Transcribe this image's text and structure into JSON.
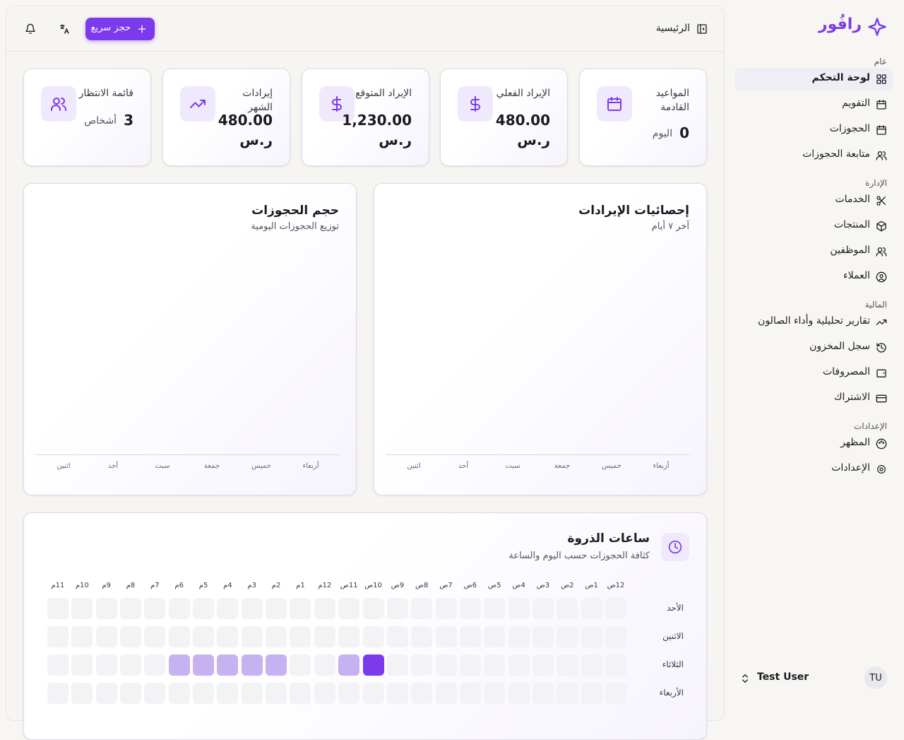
{
  "sidebar": {
    "logo": "رافُور",
    "sections": [
      {
        "title": "عام",
        "items": [
          "لوحة التحكم",
          "التقويم",
          "الحجوزات",
          "متابعة الحجوزات"
        ]
      },
      {
        "title": "الإدارة",
        "items": [
          "الخدمات",
          "المنتجات",
          "الموظفين",
          "العملاء"
        ]
      },
      {
        "title": "المالية",
        "items": [
          "تقارير تحليلية وأداء الصالون",
          "سجل المخزون",
          "المصروفات",
          "الاشتراك"
        ]
      },
      {
        "title": "الإعدادات",
        "items": [
          "المظهر",
          "الإعدادات"
        ]
      }
    ],
    "user": {
      "name": "Test User",
      "initials": "TU"
    }
  },
  "header": {
    "breadcrumb": "الرئيسية",
    "quick_booking": "حجز سريع"
  },
  "stats": [
    {
      "label": "المواعيد القادمة",
      "value": "0",
      "unit": "اليوم"
    },
    {
      "label": "الإيراد الفعلي",
      "value": "480.00",
      "currency": "ر.س"
    },
    {
      "label": "الإيراد المتوقع",
      "value": "1,230.00",
      "currency": "ر.س"
    },
    {
      "label": "إيرادات الشهر",
      "value": "480.00",
      "currency": "ر.س"
    },
    {
      "label": "قائمة الانتظار",
      "value": "3",
      "unit": "أشخاص"
    }
  ],
  "charts": [
    {
      "title": "إحصائيات الإيرادات",
      "subtitle": "آخر ٧ أيام",
      "categories": [
        "أربعاء",
        "خميس",
        "جمعة",
        "سبت",
        "أحد",
        "اثنين"
      ]
    },
    {
      "title": "حجم الحجوزات",
      "subtitle": "توزيع الحجوزات اليومية",
      "categories": [
        "أربعاء",
        "خميس",
        "جمعة",
        "سبت",
        "أحد",
        "اثنين"
      ]
    }
  ],
  "heatmap": {
    "title": "ساعات الذروة",
    "subtitle": "كثافة الحجوزات حسب اليوم والساعة",
    "hours": [
      "12ص",
      "1ص",
      "2ص",
      "3ص",
      "4ص",
      "5ص",
      "6ص",
      "7ص",
      "8ص",
      "9ص",
      "10ص",
      "11ص",
      "12م",
      "1م",
      "2م",
      "3م",
      "4م",
      "5م",
      "6م",
      "7م",
      "8م",
      "9م",
      "10م",
      "11م"
    ],
    "days": [
      "الأحد",
      "الاثنين",
      "الثلاثاء",
      "الأربعاء"
    ],
    "values": [
      [
        0,
        0,
        0,
        0,
        0,
        0,
        0,
        0,
        0,
        0,
        0,
        0,
        0,
        0,
        0,
        0,
        0,
        0,
        0,
        0,
        0,
        0,
        0,
        0
      ],
      [
        0,
        0,
        0,
        0,
        0,
        0,
        0,
        0,
        0,
        0,
        0,
        0,
        0,
        0,
        0,
        0,
        0,
        0,
        0,
        0,
        0,
        0,
        0,
        0
      ],
      [
        0,
        0,
        0,
        0,
        0,
        0,
        0,
        0,
        0,
        0,
        2,
        1,
        0,
        0,
        1,
        1,
        1,
        1,
        1,
        0,
        0,
        0,
        0,
        0
      ],
      [
        0,
        0,
        0,
        0,
        0,
        0,
        0,
        0,
        0,
        0,
        0,
        0,
        0,
        0,
        0,
        0,
        0,
        0,
        0,
        0,
        0,
        0,
        0,
        0
      ]
    ]
  }
}
